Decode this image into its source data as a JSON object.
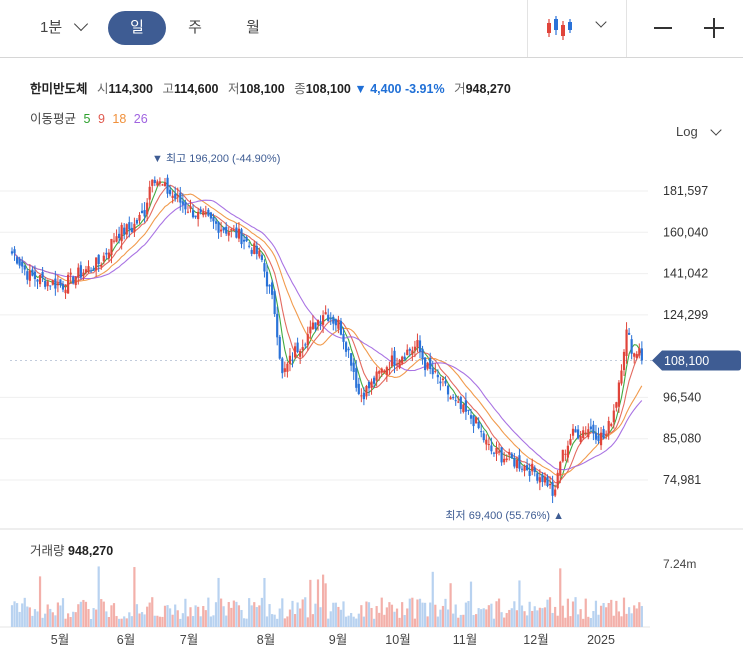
{
  "toolbar": {
    "interval_label": "1분",
    "tabs": [
      {
        "label": "일",
        "active": true
      },
      {
        "label": "주",
        "active": false
      },
      {
        "label": "월",
        "active": false
      }
    ],
    "chart_type_icon": "candlestick-icon",
    "zoom_out_icon": "minus-icon",
    "zoom_in_icon": "plus-icon"
  },
  "quote": {
    "name": "한미반도체",
    "open_label": "시",
    "open": "114,300",
    "high_label": "고",
    "high": "114,600",
    "low_label": "저",
    "low": "108,100",
    "close_label": "종",
    "close": "108,100",
    "change": "▼ 4,400 -3.91%",
    "volume_label": "거",
    "volume": "948,270"
  },
  "moving_average": {
    "label": "이동평균",
    "periods": [
      {
        "period": "5",
        "color": "#2ca02c"
      },
      {
        "period": "9",
        "color": "#e05a4f"
      },
      {
        "period": "18",
        "color": "#f0903a"
      },
      {
        "period": "26",
        "color": "#a064e0"
      }
    ]
  },
  "scale": {
    "label": "Log"
  },
  "volume_panel": {
    "label": "거래량",
    "value": "948,270",
    "tick": "7.24m"
  },
  "colors": {
    "up": "#e0443a",
    "down": "#2a72d8",
    "volume": "#b8d2f0",
    "volume_up": "#f3b0aa",
    "tag": "#3e5c93"
  },
  "chart_data": {
    "type": "candlestick",
    "scale": "log",
    "x_tick_labels": [
      "5월",
      "6월",
      "7월",
      "8월",
      "9월",
      "10월",
      "11월",
      "12월",
      "2025"
    ],
    "y_tick_labels": [
      "181,597",
      "160,040",
      "141,042",
      "124,299",
      "108,100",
      "96,540",
      "85,080",
      "74,981"
    ],
    "y_ticks": [
      181597,
      160040,
      141042,
      124299,
      96540,
      85080,
      74981
    ],
    "current_price": {
      "value": 108100,
      "label": "108,100"
    },
    "high_annotation": {
      "label": "▼ 최고 196,200 (-44.90%)",
      "value": 196200
    },
    "low_annotation": {
      "label": "최저 69,400 (55.76%) ▲",
      "value": 69400
    },
    "ylim": [
      66000,
      215000
    ],
    "close_path": [
      {
        "d": "04-18",
        "c": 150000
      },
      {
        "d": "04-25",
        "c": 140000
      },
      {
        "d": "05-02",
        "c": 136000
      },
      {
        "d": "05-10",
        "c": 141000
      },
      {
        "d": "05-20",
        "c": 146000
      },
      {
        "d": "05-28",
        "c": 160000
      },
      {
        "d": "06-04",
        "c": 162000
      },
      {
        "d": "06-10",
        "c": 170000
      },
      {
        "d": "06-14",
        "c": 192000
      },
      {
        "d": "06-18",
        "c": 185000
      },
      {
        "d": "06-25",
        "c": 178000
      },
      {
        "d": "07-05",
        "c": 168000
      },
      {
        "d": "07-15",
        "c": 162000
      },
      {
        "d": "07-22",
        "c": 158000
      },
      {
        "d": "07-30",
        "c": 148000
      },
      {
        "d": "08-05",
        "c": 125000
      },
      {
        "d": "08-08",
        "c": 103000
      },
      {
        "d": "08-14",
        "c": 112000
      },
      {
        "d": "08-20",
        "c": 118000
      },
      {
        "d": "08-26",
        "c": 126000
      },
      {
        "d": "09-02",
        "c": 120000
      },
      {
        "d": "09-08",
        "c": 108000
      },
      {
        "d": "09-12",
        "c": 97000
      },
      {
        "d": "09-18",
        "c": 100000
      },
      {
        "d": "09-25",
        "c": 106000
      },
      {
        "d": "10-02",
        "c": 110000
      },
      {
        "d": "10-10",
        "c": 113000
      },
      {
        "d": "10-14",
        "c": 106000
      },
      {
        "d": "10-22",
        "c": 100000
      },
      {
        "d": "10-28",
        "c": 94000
      },
      {
        "d": "11-05",
        "c": 90000
      },
      {
        "d": "11-12",
        "c": 82000
      },
      {
        "d": "11-20",
        "c": 80000
      },
      {
        "d": "11-28",
        "c": 78000
      },
      {
        "d": "12-06",
        "c": 75000
      },
      {
        "d": "12-10",
        "c": 71000
      },
      {
        "d": "12-12",
        "c": 79000
      },
      {
        "d": "12-18",
        "c": 86000
      },
      {
        "d": "12-26",
        "c": 88000
      },
      {
        "d": "01-03",
        "c": 85000
      },
      {
        "d": "01-08",
        "c": 95000
      },
      {
        "d": "01-13",
        "c": 118000
      },
      {
        "d": "01-17",
        "c": 110000
      },
      {
        "d": "01-20",
        "c": 114000
      },
      {
        "d": "01-23",
        "c": 108100
      }
    ]
  }
}
